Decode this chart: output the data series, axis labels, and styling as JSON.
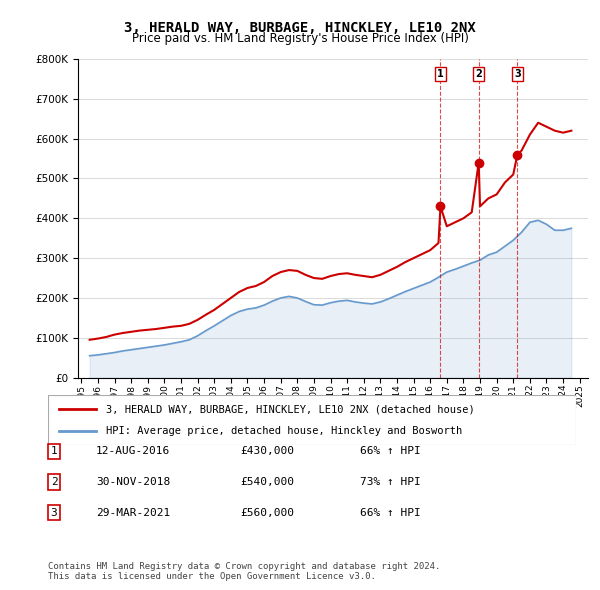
{
  "title": "3, HERALD WAY, BURBAGE, HINCKLEY, LE10 2NX",
  "subtitle": "Price paid vs. HM Land Registry's House Price Index (HPI)",
  "legend_line1": "3, HERALD WAY, BURBAGE, HINCKLEY, LE10 2NX (detached house)",
  "legend_line2": "HPI: Average price, detached house, Hinckley and Bosworth",
  "transactions": [
    {
      "num": 1,
      "date": "12-AUG-2016",
      "price": "£430,000",
      "hpi": "66% ↑ HPI",
      "year": 2016.62
    },
    {
      "num": 2,
      "date": "30-NOV-2018",
      "price": "£540,000",
      "hpi": "73% ↑ HPI",
      "year": 2018.92
    },
    {
      "num": 3,
      "date": "29-MAR-2021",
      "price": "£560,000",
      "hpi": "66% ↑ HPI",
      "year": 2021.25
    }
  ],
  "footer": "Contains HM Land Registry data © Crown copyright and database right 2024.\nThis data is licensed under the Open Government Licence v3.0.",
  "price_color": "#cc0000",
  "hpi_color": "#6699cc",
  "transaction_marker_color": "#cc0000",
  "vline_color": "#cc0000",
  "ylim": [
    0,
    800000
  ],
  "yticks": [
    0,
    100000,
    200000,
    300000,
    400000,
    500000,
    600000,
    700000,
    800000
  ],
  "price_data": {
    "years": [
      1995.5,
      1996.0,
      1996.5,
      1997.0,
      1997.5,
      1998.0,
      1998.5,
      1999.0,
      1999.5,
      2000.0,
      2000.5,
      2001.0,
      2001.5,
      2002.0,
      2002.5,
      2003.0,
      2003.5,
      2004.0,
      2004.5,
      2005.0,
      2005.5,
      2006.0,
      2006.5,
      2007.0,
      2007.5,
      2008.0,
      2008.5,
      2009.0,
      2009.5,
      2010.0,
      2010.5,
      2011.0,
      2011.5,
      2012.0,
      2012.5,
      2013.0,
      2013.5,
      2014.0,
      2014.5,
      2015.0,
      2015.5,
      2016.0,
      2016.5,
      2016.62,
      2017.0,
      2017.5,
      2018.0,
      2018.5,
      2018.92,
      2019.0,
      2019.5,
      2020.0,
      2020.5,
      2021.0,
      2021.25,
      2021.5,
      2022.0,
      2022.5,
      2023.0,
      2023.5,
      2024.0,
      2024.5
    ],
    "values": [
      95000,
      98000,
      102000,
      108000,
      112000,
      115000,
      118000,
      120000,
      122000,
      125000,
      128000,
      130000,
      135000,
      145000,
      158000,
      170000,
      185000,
      200000,
      215000,
      225000,
      230000,
      240000,
      255000,
      265000,
      270000,
      268000,
      258000,
      250000,
      248000,
      255000,
      260000,
      262000,
      258000,
      255000,
      252000,
      258000,
      268000,
      278000,
      290000,
      300000,
      310000,
      320000,
      338000,
      430000,
      380000,
      390000,
      400000,
      415000,
      540000,
      430000,
      450000,
      460000,
      490000,
      510000,
      560000,
      570000,
      610000,
      640000,
      630000,
      620000,
      615000,
      620000
    ]
  },
  "hpi_data": {
    "years": [
      1995.5,
      1996.0,
      1996.5,
      1997.0,
      1997.5,
      1998.0,
      1998.5,
      1999.0,
      1999.5,
      2000.0,
      2000.5,
      2001.0,
      2001.5,
      2002.0,
      2002.5,
      2003.0,
      2003.5,
      2004.0,
      2004.5,
      2005.0,
      2005.5,
      2006.0,
      2006.5,
      2007.0,
      2007.5,
      2008.0,
      2008.5,
      2009.0,
      2009.5,
      2010.0,
      2010.5,
      2011.0,
      2011.5,
      2012.0,
      2012.5,
      2013.0,
      2013.5,
      2014.0,
      2014.5,
      2015.0,
      2015.5,
      2016.0,
      2016.5,
      2017.0,
      2017.5,
      2018.0,
      2018.5,
      2019.0,
      2019.5,
      2020.0,
      2020.5,
      2021.0,
      2021.5,
      2022.0,
      2022.5,
      2023.0,
      2023.5,
      2024.0,
      2024.5
    ],
    "values": [
      55000,
      57000,
      60000,
      63000,
      67000,
      70000,
      73000,
      76000,
      79000,
      82000,
      86000,
      90000,
      95000,
      105000,
      118000,
      130000,
      143000,
      156000,
      166000,
      172000,
      175000,
      182000,
      192000,
      200000,
      204000,
      200000,
      191000,
      183000,
      182000,
      188000,
      192000,
      194000,
      190000,
      187000,
      185000,
      190000,
      198000,
      207000,
      216000,
      224000,
      232000,
      240000,
      252000,
      265000,
      272000,
      280000,
      288000,
      295000,
      308000,
      315000,
      330000,
      345000,
      365000,
      390000,
      395000,
      385000,
      370000,
      370000,
      375000
    ]
  }
}
